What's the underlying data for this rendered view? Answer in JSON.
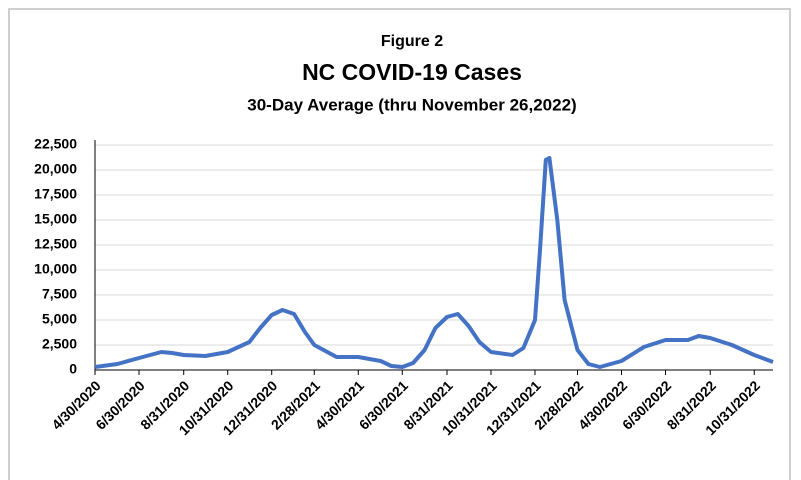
{
  "chart_data": {
    "type": "line",
    "figure_label": "Figure 2",
    "title": "NC COVID-19 Cases",
    "subtitle": "30-Day Average (thru November 26,2022)",
    "x": [
      "4/30/2020",
      "5/31/2020",
      "6/30/2020",
      "7/31/2020",
      "8/15/2020",
      "8/31/2020",
      "9/30/2020",
      "10/31/2020",
      "11/30/2020",
      "12/15/2020",
      "12/31/2020",
      "1/15/2021",
      "1/31/2021",
      "2/15/2021",
      "2/28/2021",
      "3/31/2021",
      "4/30/2021",
      "5/31/2021",
      "6/15/2021",
      "6/30/2021",
      "7/15/2021",
      "7/31/2021",
      "8/15/2021",
      "8/31/2021",
      "9/15/2021",
      "9/30/2021",
      "10/15/2021",
      "10/31/2021",
      "11/30/2021",
      "12/15/2021",
      "12/31/2021",
      "1/7/2022",
      "1/15/2022",
      "1/20/2022",
      "1/31/2022",
      "2/10/2022",
      "2/28/2022",
      "3/15/2022",
      "3/31/2022",
      "4/30/2022",
      "5/31/2022",
      "6/30/2022",
      "7/31/2022",
      "8/15/2022",
      "8/31/2022",
      "9/30/2022",
      "10/31/2022",
      "11/26/2022"
    ],
    "series": [
      {
        "name": "30-Day Average",
        "color": "#4472c4",
        "values": [
          300,
          600,
          1200,
          1800,
          1700,
          1500,
          1400,
          1800,
          2800,
          4200,
          5500,
          6000,
          5600,
          3800,
          2500,
          1300,
          1300,
          900,
          400,
          300,
          700,
          2000,
          4200,
          5300,
          5600,
          4400,
          2800,
          1800,
          1500,
          2200,
          5000,
          12000,
          21000,
          21200,
          15000,
          7000,
          2000,
          600,
          300,
          900,
          2300,
          3000,
          3000,
          3400,
          3200,
          2500,
          1500,
          800
        ]
      }
    ],
    "xlim": [
      "4/30/2020",
      "11/26/2022"
    ],
    "xticks": [
      "4/30/2020",
      "6/30/2020",
      "8/31/2020",
      "10/31/2020",
      "12/31/2020",
      "2/28/2021",
      "4/30/2021",
      "6/30/2021",
      "8/31/2021",
      "10/31/2021",
      "12/31/2021",
      "2/28/2022",
      "4/30/2022",
      "6/30/2022",
      "8/31/2022",
      "10/31/2022"
    ],
    "ylim": [
      0,
      22500
    ],
    "yticks": [
      0,
      {
        "value": 2500,
        "label": "2,500"
      },
      {
        "value": 5000,
        "label": "5,000"
      },
      {
        "value": 7500,
        "label": "7,500"
      },
      {
        "value": 10000,
        "label": "10,000"
      },
      {
        "value": 12500,
        "label": "12,500"
      },
      {
        "value": 15000,
        "label": "15,000"
      },
      {
        "value": 17500,
        "label": "17,500"
      },
      {
        "value": 20000,
        "label": "20,000"
      },
      {
        "value": 22500,
        "label": "22,500"
      }
    ],
    "grid": true
  }
}
